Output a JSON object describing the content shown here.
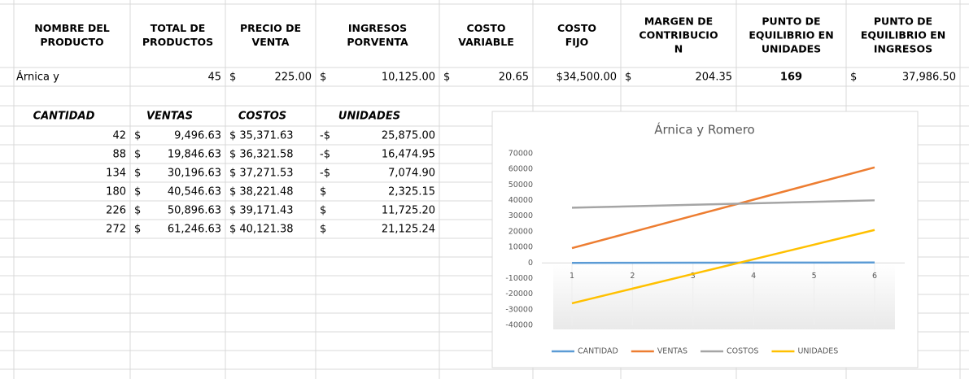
{
  "table": {
    "header": [
      [
        "NOMBRE DEL",
        "PRODUCTO"
      ],
      [
        "TOTAL DE",
        "PRODUCTOS"
      ],
      [
        "PRECIO DE",
        "VENTA"
      ],
      [
        "INGRESOS",
        "PORVENTA"
      ],
      [
        "COSTO",
        "VARIABLE"
      ],
      [
        "COSTO",
        "FIJO"
      ],
      [
        "MARGEN DE",
        "CONTRIBUCIO",
        "N"
      ],
      [
        "PUNTO DE",
        "EQUILIBRIO EN",
        "UNIDADES"
      ],
      [
        "PUNTO DE",
        "EQUILIBRIO EN",
        "INGRESOS"
      ]
    ],
    "row": [
      "Árnica y",
      "45",
      [
        "$",
        "225.00"
      ],
      [
        "$",
        "10,125.00"
      ],
      [
        "$",
        "20.65"
      ],
      "$34,500.00",
      [
        "$",
        "204.35"
      ],
      "169",
      [
        "$",
        "37,986.50"
      ]
    ]
  },
  "table2": {
    "header": [
      "CANTIDAD",
      "VENTAS",
      "COSTOS",
      "UNIDADES"
    ],
    "rows": [
      [
        "42",
        [
          "$",
          "9,496.63"
        ],
        "$ 35,371.63",
        [
          "-$",
          "25,875.00"
        ]
      ],
      [
        "88",
        [
          "$",
          "19,846.63"
        ],
        "$ 36,321.58",
        [
          "-$",
          "16,474.95"
        ]
      ],
      [
        "134",
        [
          "$",
          "30,196.63"
        ],
        "$ 37,271.53",
        [
          "-$",
          "7,074.90"
        ]
      ],
      [
        "180",
        [
          "$",
          "40,546.63"
        ],
        "$ 38,221.48",
        [
          "$",
          "2,325.15"
        ]
      ],
      [
        "226",
        [
          "$",
          "50,896.63"
        ],
        "$ 39,171.43",
        [
          "$",
          "11,725.20"
        ]
      ],
      [
        "272",
        [
          "$",
          "61,246.63"
        ],
        "$ 40,121.38",
        [
          "$",
          "21,125.24"
        ]
      ]
    ]
  },
  "chart_data": {
    "type": "line",
    "title": "Árnica y Romero",
    "categories": [
      "1",
      "2",
      "3",
      "4",
      "5",
      "6"
    ],
    "series": [
      {
        "name": "CANTIDAD",
        "color": "#5b9bd5",
        "values": [
          42,
          88,
          134,
          180,
          226,
          272
        ]
      },
      {
        "name": "VENTAS",
        "color": "#ed7d31",
        "values": [
          9496.63,
          19846.63,
          30196.63,
          40546.63,
          50896.63,
          61246.63
        ]
      },
      {
        "name": "COSTOS",
        "color": "#a5a5a5",
        "values": [
          35371.63,
          36321.58,
          37271.53,
          38221.48,
          39171.43,
          40121.38
        ]
      },
      {
        "name": "UNIDADES",
        "color": "#ffc000",
        "values": [
          -25875.0,
          -16474.95,
          -7074.9,
          2325.15,
          11725.2,
          21125.24
        ]
      }
    ],
    "ylim": [
      -40000,
      70000
    ],
    "yticks": [
      -40000,
      -30000,
      -20000,
      -10000,
      0,
      10000,
      20000,
      30000,
      40000,
      50000,
      60000,
      70000
    ],
    "legend": "bottom"
  }
}
